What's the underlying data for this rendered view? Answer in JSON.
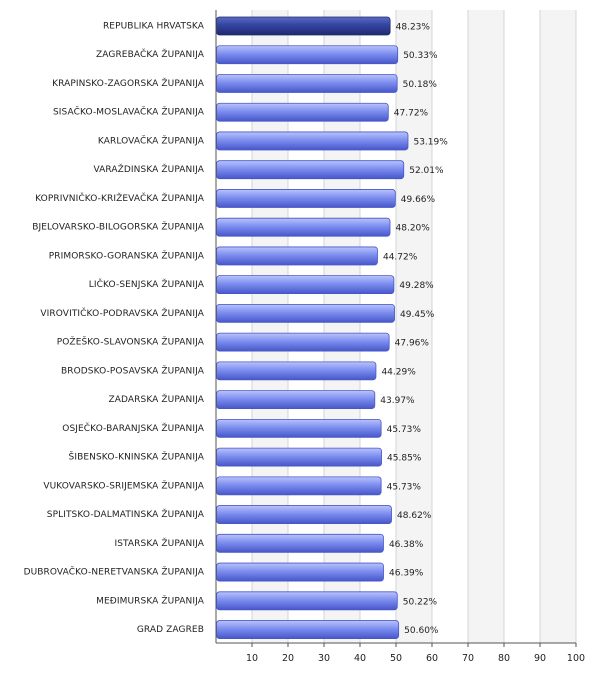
{
  "chart_data": {
    "type": "bar",
    "orientation": "horizontal",
    "categories": [
      "REPUBLIKA HRVATSKA",
      "ZAGREBAČKA ŽUPANIJA",
      "KRAPINSKO-ZAGORSKA ŽUPANIJA",
      "SISAČKO-MOSLAVAČKA ŽUPANIJA",
      "KARLOVAČKA ŽUPANIJA",
      "VARAŽDINSKA ŽUPANIJA",
      "KOPRIVNIČKO-KRIŽEVAČKA ŽUPANIJA",
      "BJELOVARSKO-BILOGORSKA ŽUPANIJA",
      "PRIMORSKO-GORANSKA ŽUPANIJA",
      "LIČKO-SENJSKA ŽUPANIJA",
      "VIROVITIČKO-PODRAVSKA ŽUPANIJA",
      "POŽEŠKO-SLAVONSKA ŽUPANIJA",
      "BRODSKO-POSAVSKA ŽUPANIJA",
      "ZADARSKA ŽUPANIJA",
      "OSJEČKO-BARANJSKA ŽUPANIJA",
      "ŠIBENSKO-KNINSKA ŽUPANIJA",
      "VUKOVARSKO-SRIJEMSKA ŽUPANIJA",
      "SPLITSKO-DALMATINSKA ŽUPANIJA",
      "ISTARSKA ŽUPANIJA",
      "DUBROVAČKO-NERETVANSKA ŽUPANIJA",
      "MEĐIMURSKA ŽUPANIJA",
      "GRAD ZAGREB"
    ],
    "values": [
      48.23,
      50.33,
      50.18,
      47.72,
      53.19,
      52.01,
      49.66,
      48.2,
      44.72,
      49.28,
      49.45,
      47.96,
      44.29,
      43.97,
      45.73,
      45.85,
      45.73,
      48.62,
      46.38,
      46.39,
      50.22,
      50.6
    ],
    "value_labels": [
      "48.23%",
      "50.33%",
      "50.18%",
      "47.72%",
      "53.19%",
      "52.01%",
      "49.66%",
      "48.20%",
      "44.72%",
      "49.28%",
      "49.45%",
      "47.96%",
      "44.29%",
      "43.97%",
      "45.73%",
      "45.85%",
      "45.73%",
      "48.62%",
      "46.38%",
      "46.39%",
      "50.22%",
      "50.60%"
    ],
    "highlight_index": 0,
    "xlim": [
      0,
      100
    ],
    "x_ticks": [
      10,
      20,
      30,
      40,
      50,
      60,
      70,
      80,
      90,
      100
    ],
    "grid": true,
    "alternating_bands": true,
    "title": "",
    "xlabel": "",
    "ylabel": "",
    "colors": {
      "bar": "#7d8ef0",
      "bar_light": "#b9c3fa",
      "bar_dark": "#4757c9",
      "highlight": "#33449f",
      "highlight_light": "#5a6cc4",
      "highlight_dark": "#1e2a70",
      "band": "#f4f4f4",
      "grid": "#d4d4d4",
      "axis": "#555555"
    }
  }
}
